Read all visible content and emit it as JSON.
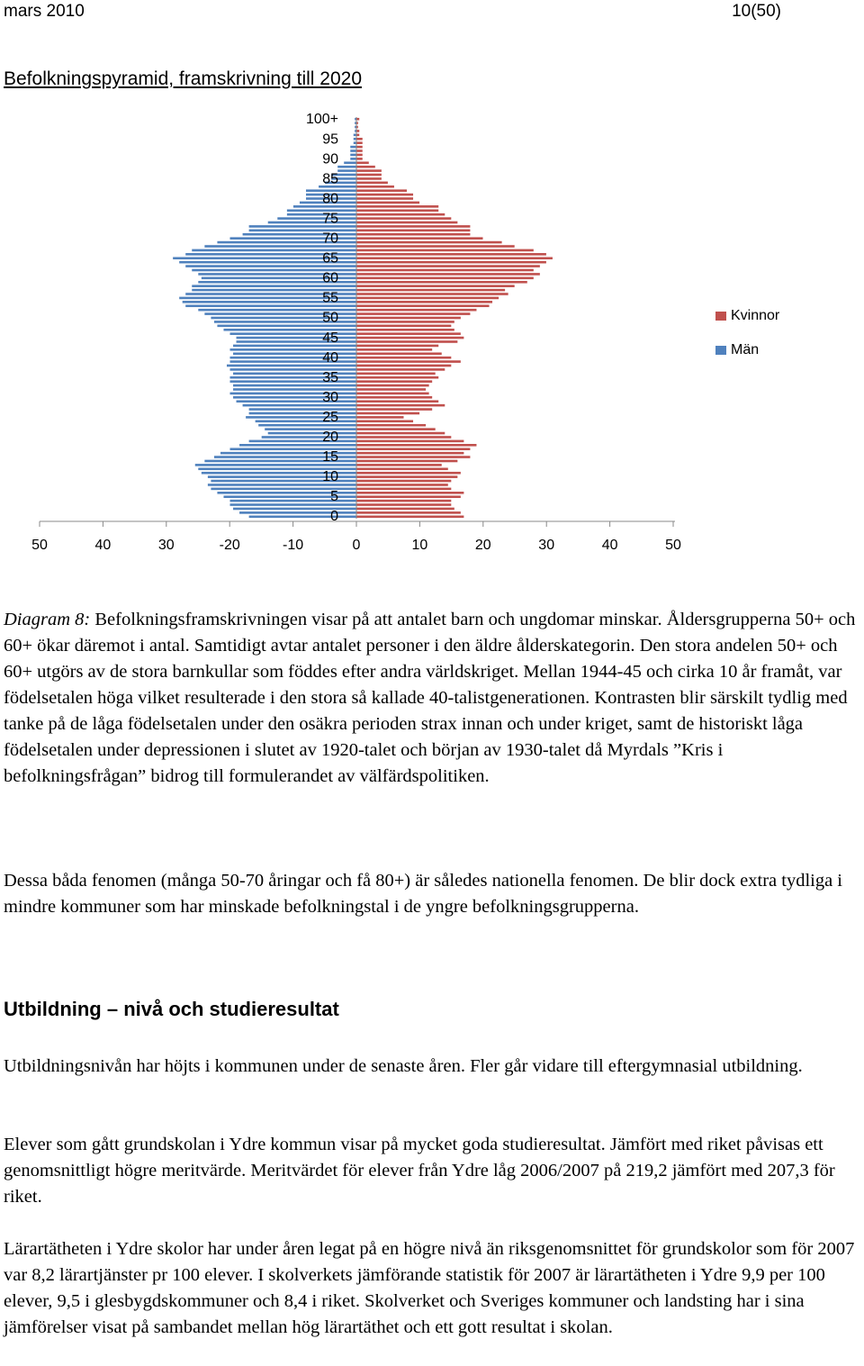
{
  "header": {
    "date": "mars 2010",
    "page": "10(50)"
  },
  "chart_title": "Befolkningspyramid, framskrivning till 2020",
  "chart_data": {
    "type": "bar",
    "orientation": "horizontal-pyramid",
    "age_tick_labels": [
      "100+",
      "95",
      "90",
      "85",
      "80",
      "75",
      "70",
      "65",
      "60",
      "55",
      "50",
      "45",
      "40",
      "35",
      "30",
      "25",
      "20",
      "15",
      "10",
      "5",
      "0"
    ],
    "x_tick_labels": [
      "50",
      "40",
      "30",
      "-20",
      "-10",
      "0",
      "10",
      "20",
      "30",
      "40",
      "50"
    ],
    "xlim": [
      -50,
      50
    ],
    "legend_position": "right",
    "series": [
      {
        "name": "Kvinnor",
        "color": "#C0504D",
        "values": [
          17,
          16.5,
          15.5,
          15,
          15,
          16.5,
          17,
          15,
          14.5,
          15,
          16,
          16.5,
          14.5,
          13.5,
          16,
          18,
          17,
          18,
          19,
          17,
          15,
          14,
          12.5,
          11,
          9,
          7.5,
          10,
          12,
          14,
          13,
          12,
          11.5,
          11,
          11.5,
          12,
          13,
          12.5,
          14,
          15,
          16.5,
          15,
          13.5,
          12,
          13,
          16,
          17,
          16.5,
          15.5,
          15,
          15.5,
          16.5,
          18,
          19,
          21,
          21.5,
          22.5,
          24,
          23.5,
          25,
          27,
          28,
          29,
          28,
          29,
          30,
          31,
          30,
          28,
          25,
          23,
          20,
          18,
          18,
          18,
          16,
          15,
          14,
          13,
          13,
          10,
          9,
          9,
          8,
          6,
          5,
          4,
          4,
          4,
          3,
          2,
          1,
          1,
          1,
          1,
          1,
          1,
          0.5,
          0.5,
          0.3,
          0.3,
          0.5
        ]
      },
      {
        "name": "Män",
        "color": "#4F81BD",
        "values": [
          -17,
          -18.5,
          -19.5,
          -20,
          -20,
          -21,
          -22,
          -23,
          -23.5,
          -23,
          -23.5,
          -24.5,
          -25,
          -25.5,
          -24,
          -22.5,
          -21.5,
          -20,
          -18.5,
          -17,
          -15,
          -14,
          -14.5,
          -15.5,
          -16,
          -17.5,
          -17,
          -17,
          -18,
          -19,
          -19.5,
          -20,
          -19.5,
          -19.5,
          -20,
          -20,
          -19.5,
          -20,
          -20.5,
          -20,
          -20,
          -19.5,
          -20,
          -19.5,
          -19,
          -19,
          -20,
          -21,
          -22,
          -22.5,
          -23,
          -24,
          -25,
          -27,
          -27.5,
          -28,
          -27,
          -26,
          -26,
          -25,
          -24.5,
          -25,
          -26,
          -27,
          -28,
          -29,
          -27,
          -26,
          -24,
          -22,
          -20,
          -18,
          -17,
          -17,
          -14,
          -12.5,
          -11,
          -11,
          -10,
          -9,
          -8,
          -8,
          -8,
          -6,
          -5,
          -4,
          -4,
          -3,
          -3,
          -2,
          -1,
          -1,
          -1,
          -1,
          -0.5,
          -0.5,
          -0.5,
          -0.3,
          -0.3,
          -0.3,
          -0.3
        ]
      }
    ]
  },
  "caption": {
    "label": "Diagram 8:",
    "text": " Befolkningsframskrivningen visar på att antalet barn och ungdomar minskar. Åldersgrupperna 50+ och 60+ ökar däremot i antal. Samtidigt avtar antalet personer i den äldre ålderskategorin. Den stora andelen 50+ och 60+ utgörs av de stora barnkullar som föddes efter andra världskriget. Mellan 1944-45 och cirka 10 år framåt, var födelsetalen höga vilket resulterade i den stora så kallade 40-talistgenerationen. Kontrasten blir särskilt tydlig med tanke på de låga födelsetalen under den osäkra perioden strax innan och under kriget, samt de historiskt låga födelsetalen under depressionen i slutet av 1920-talet och början av 1930-talet då Myrdals ”Kris i befolkningsfrågan” bidrog till formulerandet av välfärdspolitiken."
  },
  "paragraph_2": "Dessa båda fenomen (många 50-70 åringar och få 80+) är således nationella fenomen. De blir dock extra tydliga i mindre kommuner som har minskade befolkningstal i de yngre befolkningsgrupperna.",
  "section_heading": "Utbildning – nivå och studieresultat",
  "paragraph_3": "Utbildningsnivån har höjts i kommunen under de senaste åren. Fler går vidare till eftergymnasial utbildning.",
  "paragraph_4": "Elever som gått grundskolan i Ydre kommun visar på mycket goda studieresultat. Jämfört med riket påvisas ett genomsnittligt högre meritvärde. Meritvärdet för elever från Ydre låg 2006/2007 på 219,2 jämfört med 207,3 för riket.",
  "paragraph_5": "Lärartätheten i Ydre skolor har under åren legat på en högre nivå än riksgenomsnittet för grundskolor som för 2007 var 8,2 lärartjänster pr 100 elever. I skolverkets jämförande statistik för 2007 är lärartätheten i Ydre 9,9 per 100 elever, 9,5 i glesbygdskommuner och 8,4 i riket. Skolverket och Sveriges kommuner och landsting har i sina jämförelser visat på sambandet mellan hög lärartäthet och ett gott resultat i skolan."
}
